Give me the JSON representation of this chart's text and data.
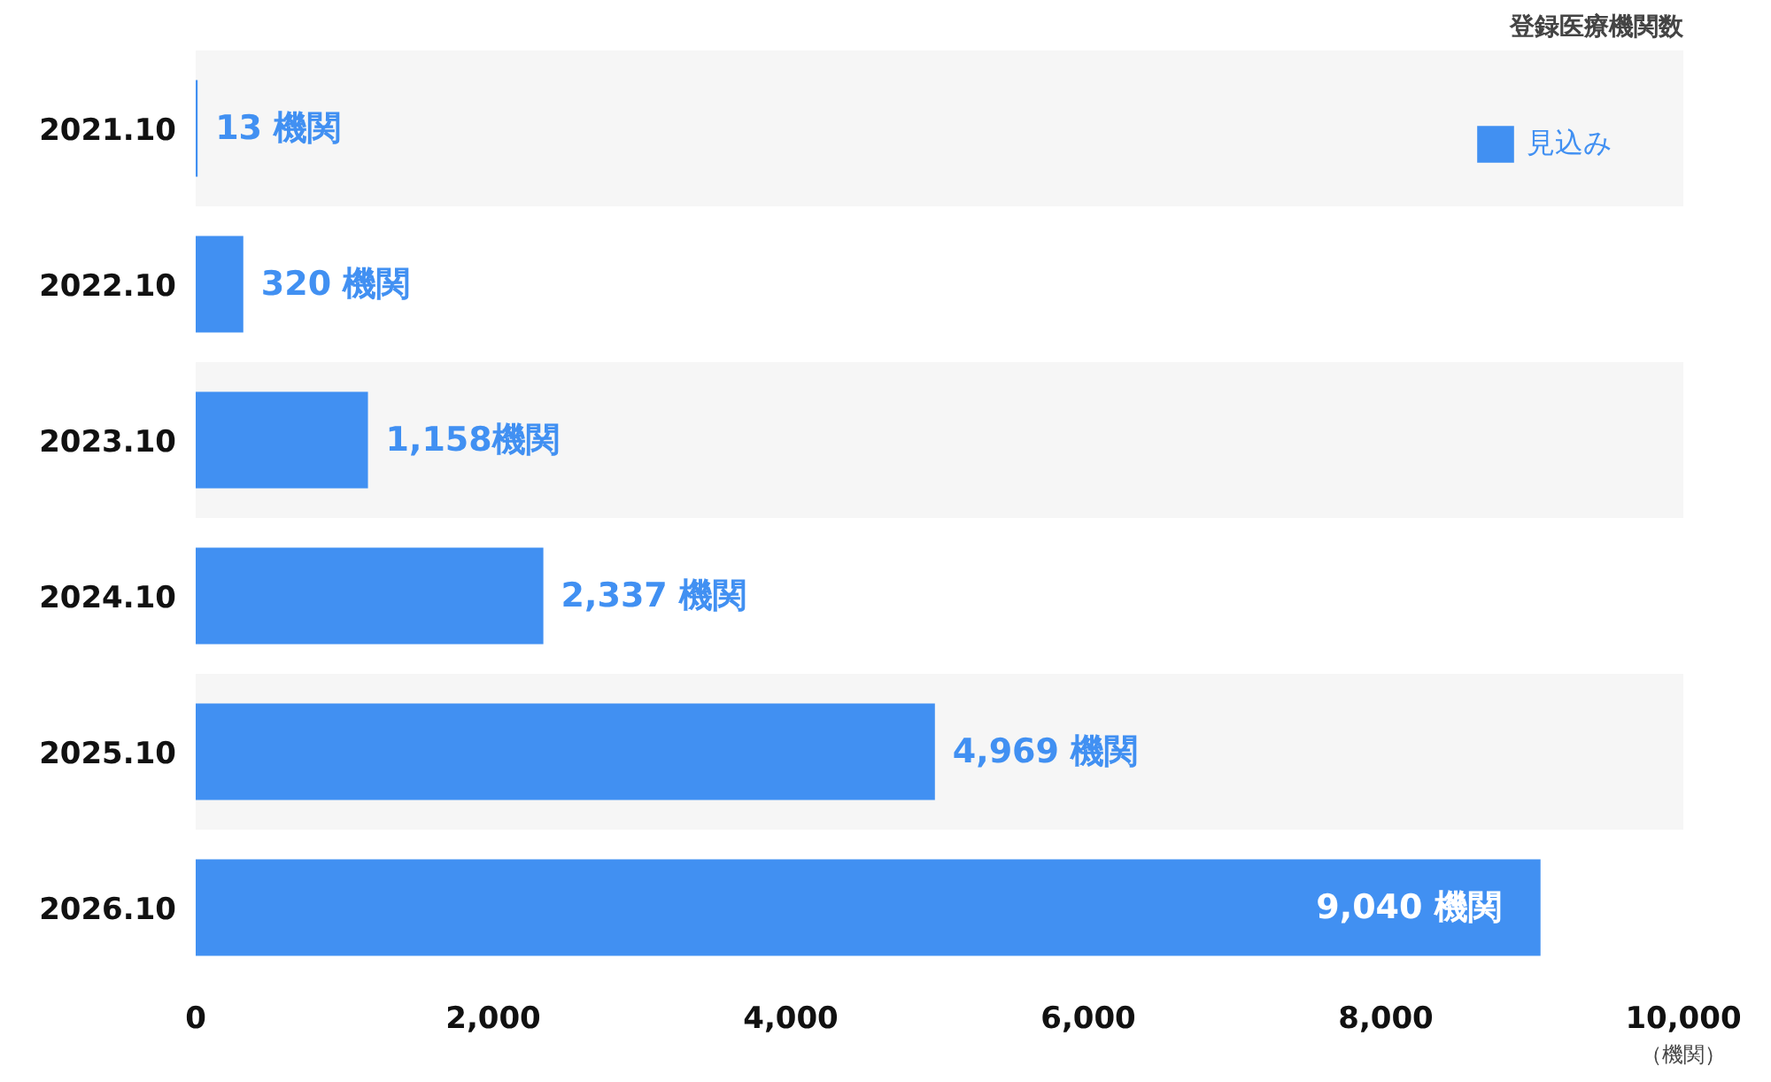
{
  "chart_data": {
    "type": "bar",
    "orientation": "horizontal",
    "title": "登録医療機関数",
    "xlabel": "（機関）",
    "categories": [
      "2021.10",
      "2022.10",
      "2023.10",
      "2024.10",
      "2025.10",
      "2026.10"
    ],
    "series": [
      {
        "name": "見込み",
        "color": "#4190f2",
        "values": [
          13,
          320,
          1158,
          2337,
          4969,
          9040
        ],
        "value_labels": [
          "13 機関",
          "320 機関",
          "1,158機関",
          "2,337 機関",
          "4,969 機関",
          "9,040 機関"
        ]
      }
    ],
    "xlim": [
      0,
      10000
    ],
    "xticks": [
      0,
      {
        "value": 2000,
        "label": "2,000"
      },
      {
        "value": 4000,
        "label": "4,000"
      },
      {
        "value": 6000,
        "label": "6,000"
      },
      {
        "value": 8000,
        "label": "8,000"
      },
      {
        "value": 10000,
        "label": "10,000"
      }
    ],
    "bands": [
      {
        "axis": "y",
        "from": "2021.10",
        "to": "2021.10",
        "color": "#f6f6f6"
      },
      {
        "axis": "y",
        "from": "2023.10",
        "to": "2023.10",
        "color": "#f6f6f6"
      },
      {
        "axis": "y",
        "from": "2025.10",
        "to": "2025.10",
        "color": "#f6f6f6"
      }
    ],
    "grid": false,
    "legend": "top right"
  }
}
